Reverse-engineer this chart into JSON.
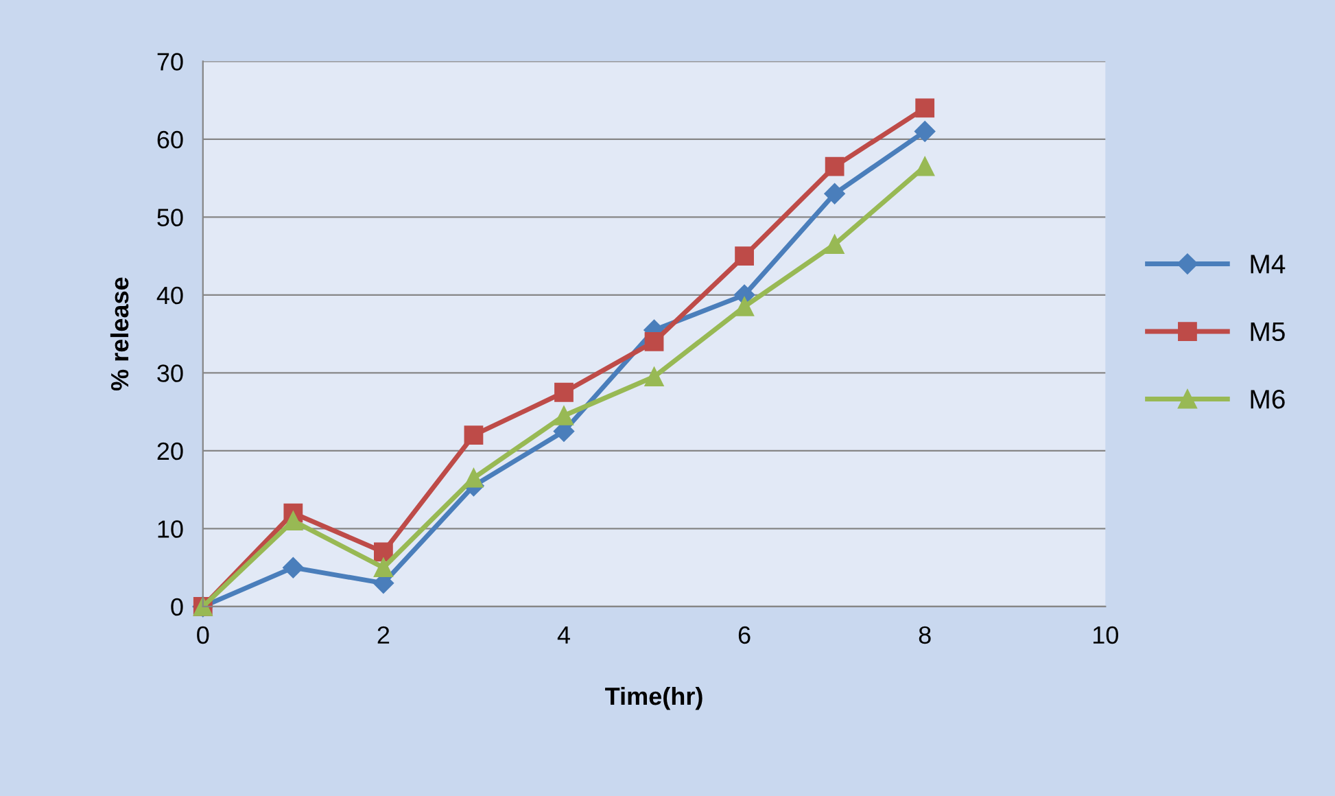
{
  "chart_data": {
    "type": "line",
    "xlabel": "Time(hr)",
    "ylabel": "% release",
    "x": [
      0,
      1,
      2,
      3,
      4,
      5,
      6,
      7,
      8
    ],
    "series": [
      {
        "name": "M4",
        "color": "#4a7ebb",
        "marker": "diamond",
        "values": [
          0,
          5,
          3,
          15.5,
          22.5,
          35.5,
          40,
          53,
          61
        ]
      },
      {
        "name": "M5",
        "color": "#be4b48",
        "marker": "square",
        "values": [
          0,
          12,
          7,
          22,
          27.5,
          34,
          45,
          56.5,
          64
        ]
      },
      {
        "name": "M6",
        "color": "#98b954",
        "marker": "triangle",
        "values": [
          0,
          11,
          5,
          16.5,
          24.5,
          29.5,
          38.5,
          46.5,
          56.5
        ]
      }
    ],
    "xlim": [
      0,
      10
    ],
    "xticks": [
      0,
      2,
      4,
      6,
      8,
      10
    ],
    "ylim": [
      0,
      70
    ],
    "yticks": [
      0,
      10,
      20,
      30,
      40,
      50,
      60,
      70
    ],
    "grid": "y",
    "legend": "right",
    "line_style": "solid"
  }
}
